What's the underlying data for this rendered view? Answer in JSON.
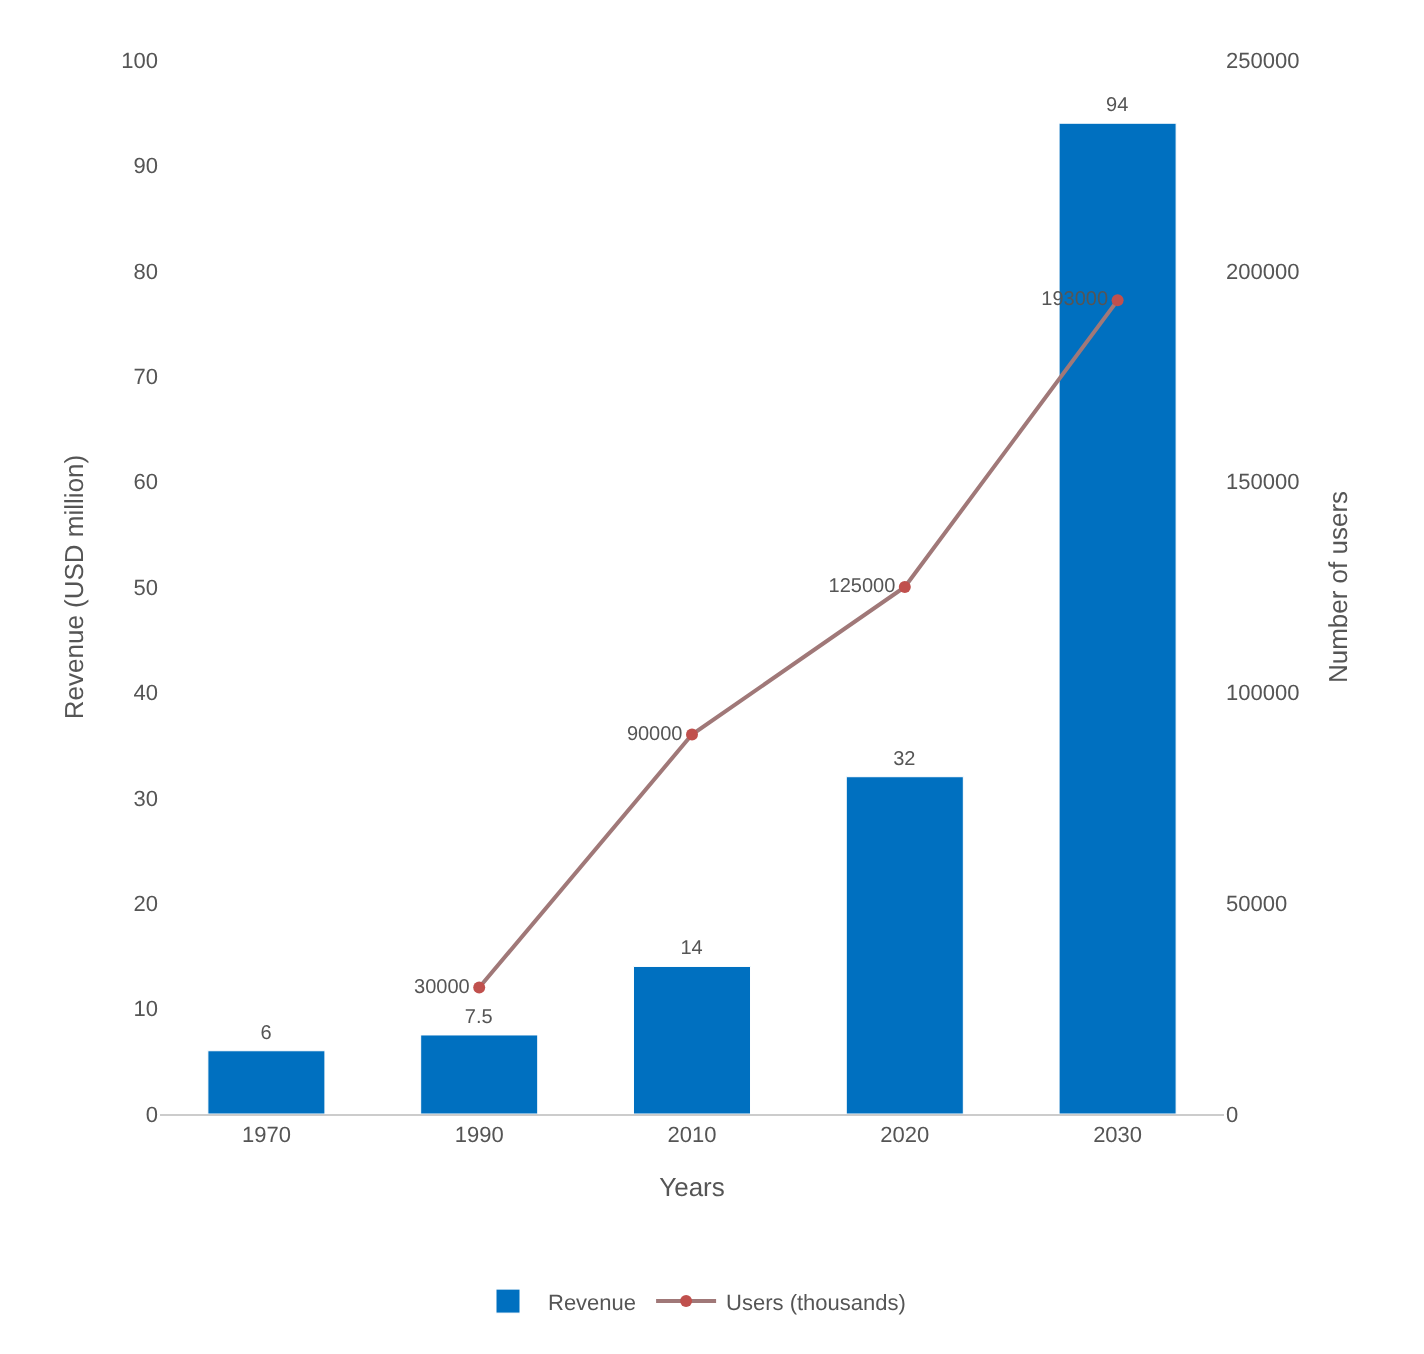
{
  "chart_data": {
    "type": "bar",
    "categories": [
      "1970",
      "1990",
      "2010",
      "2020",
      "2030"
    ],
    "xlabel": "Years",
    "ylabel": "Revenue (USD million)",
    "y2label": "Number of users",
    "series": [
      {
        "name": "Revenue",
        "color": "#0070c0",
        "values": [
          6,
          7.5,
          14,
          32,
          94
        ]
      },
      {
        "name": "Users (thousands)",
        "type": "line",
        "axis": "y2",
        "color": "#a07878",
        "values": [
          null,
          30000,
          90000,
          125000,
          193000
        ]
      }
    ],
    "ylim": [
      0,
      100
    ],
    "yticks": [
      0,
      10,
      20,
      30,
      40,
      50,
      60,
      70,
      80,
      90,
      100
    ],
    "y2lim": [
      0,
      250000
    ],
    "y2ticks": [
      0,
      50000,
      100000,
      150000,
      200000,
      250000
    ],
    "data_labels": true,
    "marker": "circle",
    "grid": false,
    "legend": "bottom"
  }
}
